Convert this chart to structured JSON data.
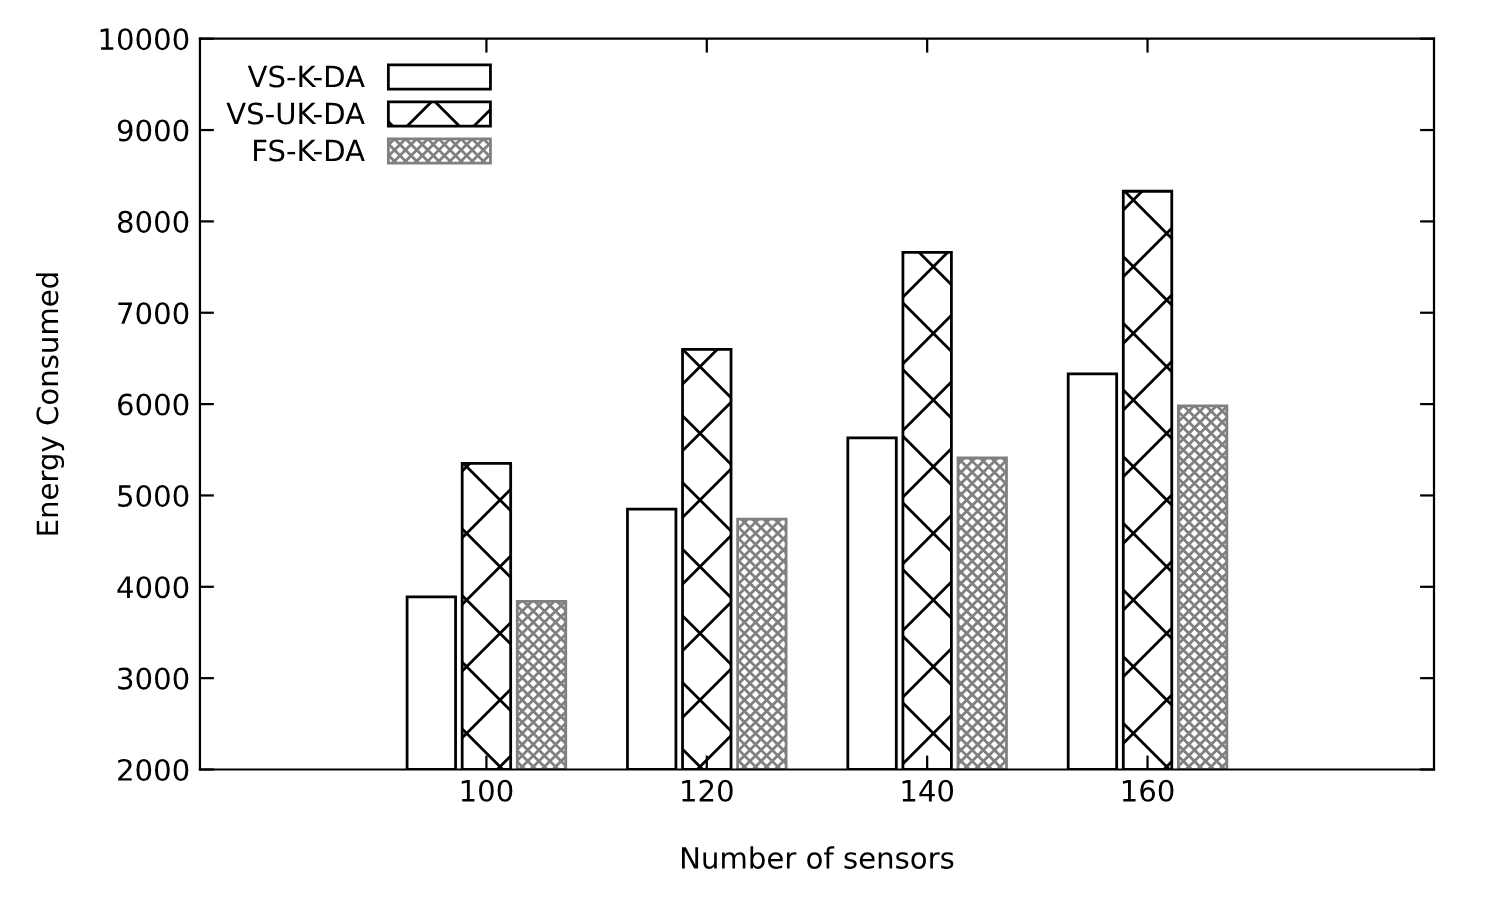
{
  "chart_data": {
    "type": "bar",
    "xlabel": "Number of sensors",
    "ylabel": "Energy Consumed",
    "categories": [
      "100",
      "120",
      "140",
      "160"
    ],
    "series": [
      {
        "name": "VS-K-DA",
        "color": "#ffffff",
        "values": [
          3890,
          4850,
          5630,
          6330
        ]
      },
      {
        "name": "VS-UK-DA",
        "color": "#000000",
        "values": [
          5350,
          6600,
          7660,
          8330
        ]
      },
      {
        "name": "FS-K-DA",
        "color": "#808080",
        "values": [
          3840,
          4740,
          5410,
          5980
        ]
      }
    ],
    "ylim": [
      2000,
      10000
    ],
    "yticks": [
      2000,
      3000,
      4000,
      5000,
      6000,
      7000,
      8000,
      9000,
      10000
    ],
    "grid": false,
    "legend": "top left"
  }
}
